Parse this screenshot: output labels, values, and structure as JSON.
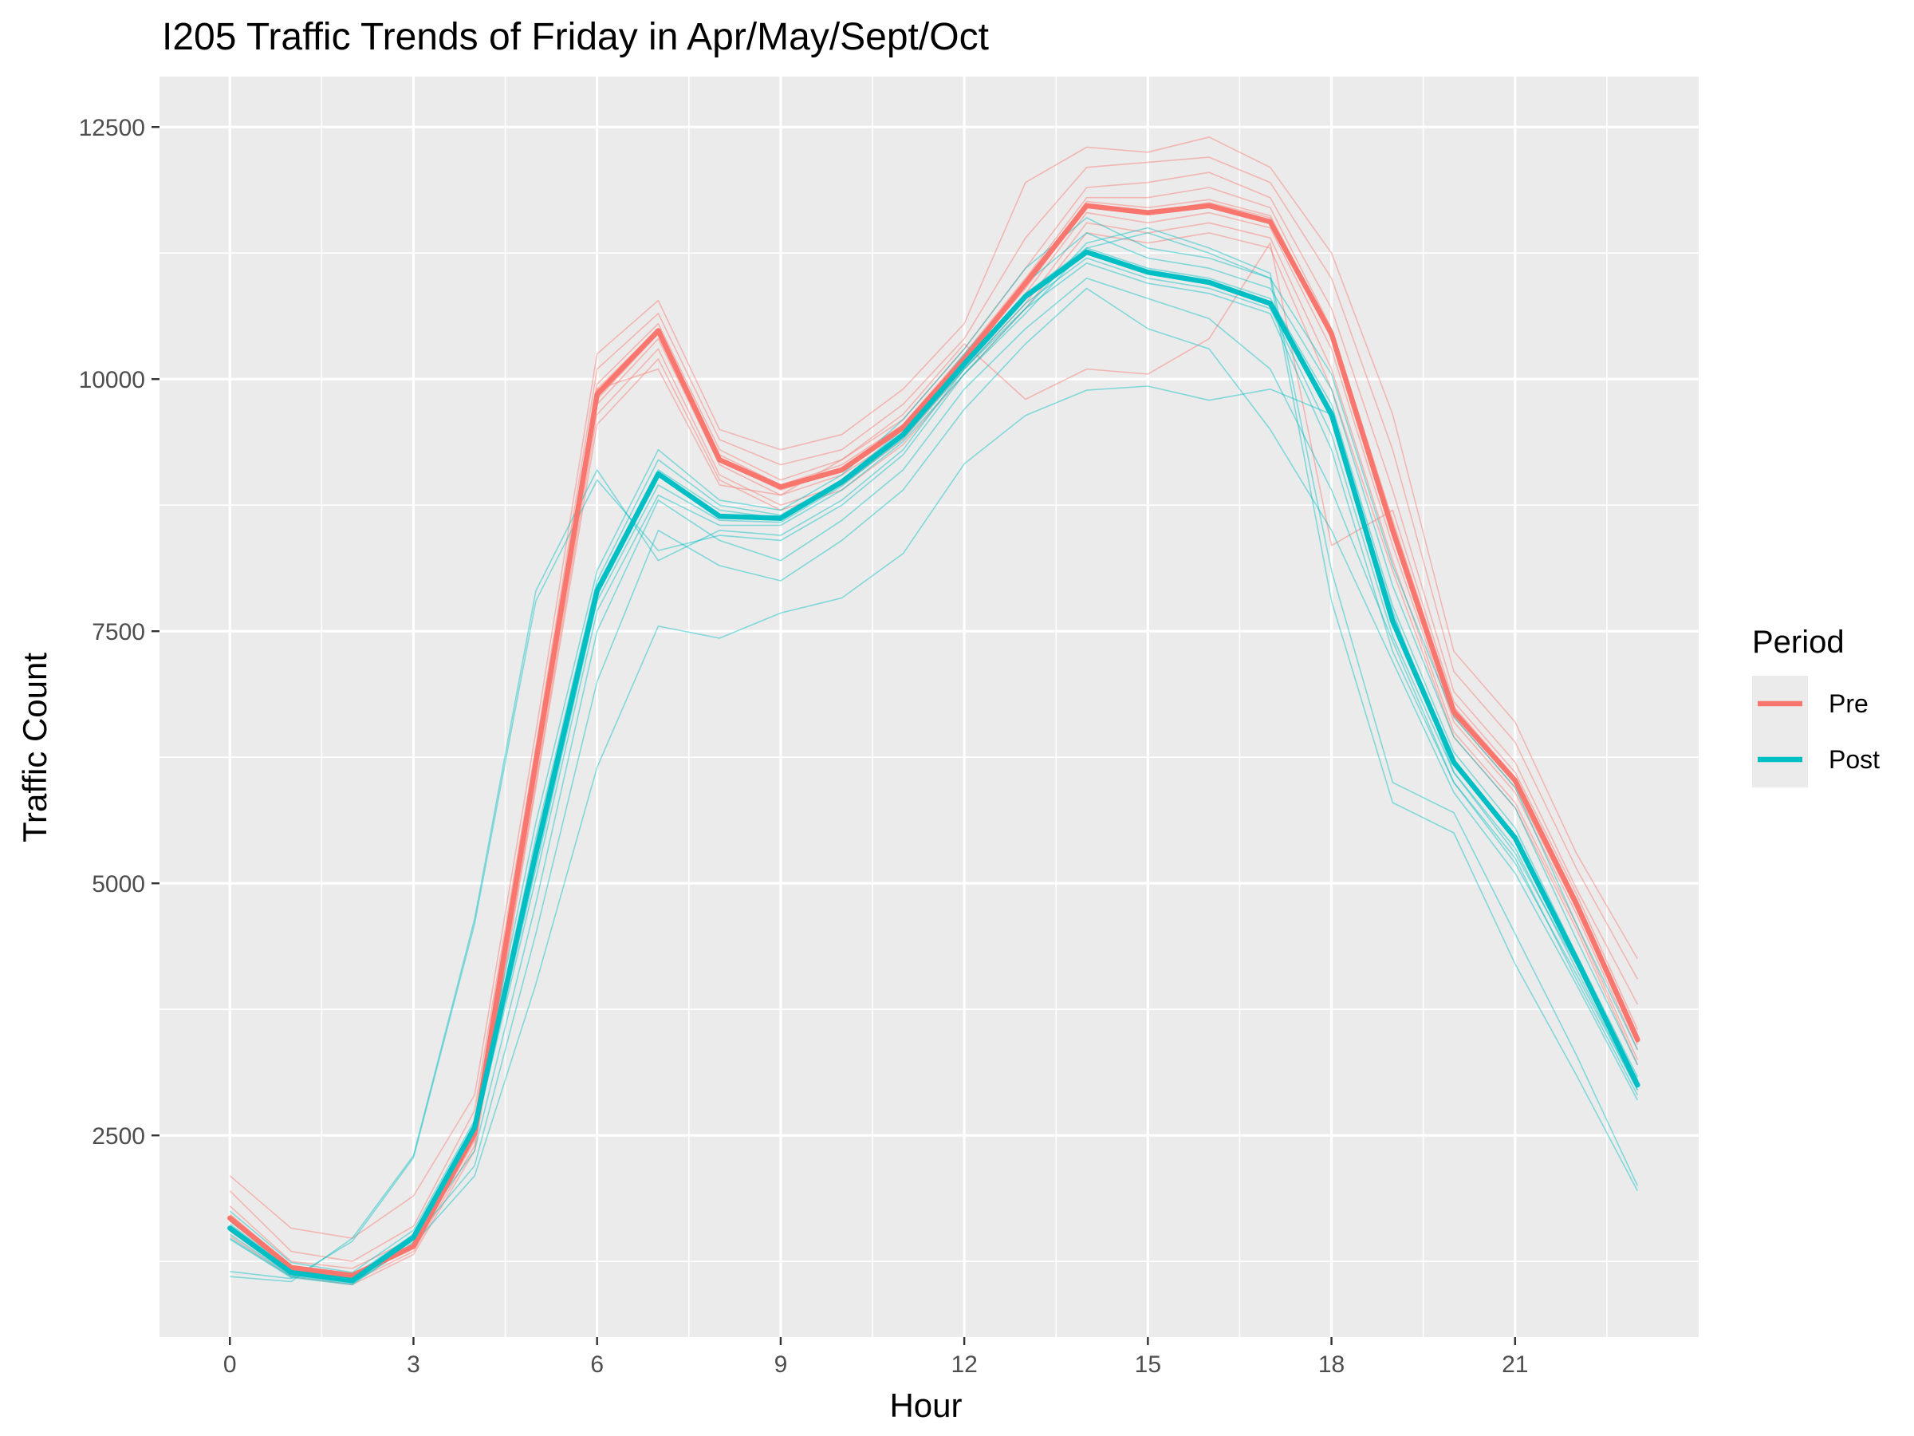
{
  "chart_data": {
    "type": "line",
    "title": "I205 Traffic Trends of Friday in Apr/May/Sept/Oct",
    "xlabel": "Hour",
    "ylabel": "Traffic Count",
    "xlim": [
      -1.15,
      24.0
    ],
    "ylim": [
      500,
      13000
    ],
    "x_ticks": [
      0,
      3,
      6,
      9,
      12,
      15,
      18,
      21
    ],
    "y_ticks": [
      2500,
      5000,
      7500,
      10000,
      12500
    ],
    "grid": true,
    "legend": {
      "title": "Period",
      "position": "right",
      "entries": [
        {
          "label": "Pre",
          "color": "#F8766D"
        },
        {
          "label": "Post",
          "color": "#00BFC4"
        }
      ]
    },
    "colors": {
      "Pre": "#F8766D",
      "Post": "#00BFC4",
      "panel": "#EBEBEB",
      "grid": "#FFFFFF"
    },
    "x": [
      0,
      1,
      2,
      3,
      4,
      5,
      6,
      7,
      8,
      9,
      10,
      11,
      12,
      13,
      14,
      15,
      16,
      17,
      18,
      19,
      20,
      21,
      22,
      23
    ],
    "series": [
      {
        "name": "Pre",
        "role": "mean",
        "values": [
          1680,
          1190,
          1110,
          1400,
          2520,
          6200,
          9850,
          10480,
          9200,
          8930,
          9100,
          9520,
          10200,
          10950,
          11720,
          11650,
          11720,
          11560,
          10450,
          8500,
          6700,
          6020,
          4800,
          3450
        ]
      },
      {
        "name": "Post",
        "role": "mean",
        "values": [
          1580,
          1140,
          1060,
          1490,
          2580,
          5300,
          7900,
          9060,
          8640,
          8620,
          8980,
          9450,
          10150,
          10820,
          11260,
          11060,
          10960,
          10750,
          9650,
          7600,
          6200,
          5450,
          4250,
          3000
        ]
      }
    ],
    "individual_series": {
      "Pre": [
        [
          2100,
          1580,
          1480,
          1900,
          2900,
          6500,
          10250,
          10780,
          9500,
          9300,
          9450,
          9900,
          10550,
          11950,
          12300,
          12250,
          12400,
          12100,
          11250,
          9650,
          7300,
          6600,
          5300,
          4250
        ],
        [
          1950,
          1350,
          1250,
          1600,
          2750,
          6350,
          10100,
          10650,
          9400,
          9150,
          9300,
          9750,
          10400,
          11400,
          12100,
          12150,
          12200,
          11950,
          11000,
          9300,
          7100,
          6400,
          5150,
          4050
        ],
        [
          1800,
          1250,
          1180,
          1480,
          2600,
          6250,
          9950,
          10550,
          9300,
          9000,
          9200,
          9600,
          10300,
          11100,
          11900,
          11950,
          12050,
          11800,
          10700,
          8900,
          6900,
          6200,
          4950,
          3800
        ],
        [
          1700,
          1200,
          1120,
          1420,
          2550,
          6200,
          9900,
          10500,
          9250,
          8950,
          9150,
          9550,
          10250,
          11000,
          11800,
          11800,
          11900,
          11700,
          10500,
          8600,
          6750,
          6050,
          4850,
          3500
        ],
        [
          1650,
          1180,
          1100,
          1400,
          2500,
          6150,
          9800,
          10450,
          9200,
          8900,
          9100,
          9500,
          10200,
          10900,
          11700,
          11650,
          11750,
          11600,
          10400,
          8450,
          6650,
          5950,
          4750,
          3400
        ],
        [
          1600,
          1150,
          1080,
          1380,
          2450,
          6100,
          9750,
          10400,
          9150,
          8850,
          9050,
          9450,
          10150,
          10850,
          11650,
          11550,
          11650,
          11500,
          10300,
          8350,
          6600,
          5900,
          4700,
          3350
        ],
        [
          1550,
          1120,
          1050,
          1350,
          2400,
          6000,
          9650,
          10300,
          9050,
          8750,
          8950,
          9400,
          10100,
          10750,
          11550,
          11450,
          11550,
          11400,
          10100,
          8200,
          6500,
          5800,
          4600,
          3250
        ],
        [
          1500,
          1100,
          1020,
          1320,
          2350,
          5950,
          9550,
          10200,
          9000,
          8700,
          8900,
          9350,
          10050,
          10700,
          11450,
          11350,
          11450,
          11300,
          9900,
          8100,
          6450,
          5750,
          4550,
          3200
        ],
        [
          1720,
          1200,
          1130,
          1410,
          2560,
          6250,
          9900,
          10100,
          8950,
          8850,
          9200,
          9650,
          10350,
          9800,
          10100,
          10050,
          10400,
          11350,
          8350,
          8700,
          6800,
          6100,
          4900,
          3550
        ],
        [
          1660,
          1170,
          1090,
          1390,
          2480,
          6180,
          9820,
          10470,
          9220,
          8920,
          9120,
          9530,
          10220,
          10950,
          11760,
          11700,
          11780,
          11620,
          10460,
          8480,
          6680,
          6000,
          4780,
          3420
        ]
      ],
      "Post": [
        [
          1750,
          1240,
          1140,
          1560,
          2650,
          5600,
          8100,
          9300,
          8800,
          8700,
          9050,
          9600,
          10300,
          11100,
          11600,
          11300,
          11200,
          11000,
          10050,
          8150,
          6650,
          5950,
          4600,
          3350
        ],
        [
          1680,
          1200,
          1100,
          1520,
          2600,
          5450,
          8000,
          9200,
          8750,
          8650,
          9000,
          9500,
          10250,
          10950,
          11450,
          11200,
          11100,
          10900,
          9900,
          7950,
          6450,
          5750,
          4450,
          3200
        ],
        [
          1620,
          1170,
          1080,
          1500,
          2580,
          5350,
          7950,
          9100,
          8700,
          8620,
          8980,
          9470,
          10180,
          10850,
          11300,
          11100,
          11000,
          10800,
          9750,
          7750,
          6300,
          5550,
          4300,
          3080
        ],
        [
          1560,
          1140,
          1060,
          1480,
          2560,
          5250,
          7880,
          9050,
          8650,
          8600,
          8960,
          9440,
          10140,
          10800,
          11250,
          11050,
          10950,
          10750,
          9600,
          7600,
          6200,
          5450,
          4250,
          3000
        ],
        [
          1520,
          1110,
          1040,
          1460,
          2540,
          5150,
          7800,
          8950,
          8600,
          8580,
          8940,
          9410,
          10100,
          10750,
          11200,
          11000,
          10900,
          10700,
          9450,
          7450,
          6100,
          5350,
          4150,
          2950
        ],
        [
          1470,
          1090,
          1020,
          1440,
          2520,
          5050,
          7700,
          8850,
          8550,
          8550,
          8900,
          9380,
          10050,
          10700,
          11150,
          10950,
          10850,
          10650,
          9300,
          7300,
          6000,
          5250,
          4050,
          2900
        ],
        [
          1100,
          1050,
          1480,
          2300,
          4650,
          7900,
          9100,
          8200,
          8500,
          8450,
          8800,
          9300,
          10100,
          10700,
          11350,
          11500,
          11300,
          11050,
          8100,
          6000,
          5700,
          4500,
          3300,
          2000
        ],
        [
          1150,
          1080,
          1450,
          2280,
          4600,
          7800,
          9000,
          8300,
          8450,
          8400,
          8750,
          9250,
          10050,
          10650,
          11300,
          11450,
          11250,
          11000,
          7800,
          5800,
          5500,
          4200,
          3100,
          1950
        ],
        [
          1480,
          1100,
          1030,
          1420,
          2100,
          4000,
          6150,
          7550,
          7430,
          7680,
          7830,
          8270,
          9160,
          9640,
          9890,
          9930,
          9790,
          9900,
          9650,
          7700,
          6100,
          5300,
          4200,
          3050
        ],
        [
          1600,
          1160,
          1070,
          1470,
          2200,
          4500,
          7000,
          8500,
          8150,
          8000,
          8400,
          8900,
          9700,
          10350,
          10900,
          10500,
          10300,
          9500,
          8500,
          7200,
          5900,
          5100,
          4000,
          2850
        ],
        [
          1650,
          1180,
          1090,
          1500,
          2350,
          4800,
          7500,
          8800,
          8400,
          8200,
          8600,
          9100,
          9900,
          10500,
          11000,
          10800,
          10600,
          10100,
          8900,
          7400,
          6000,
          5200,
          4100,
          2950
        ]
      ]
    }
  }
}
